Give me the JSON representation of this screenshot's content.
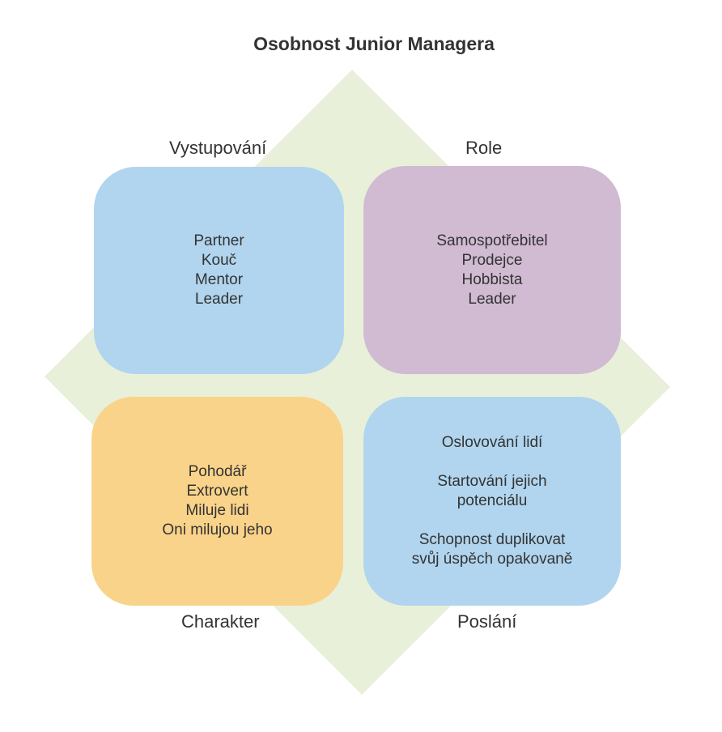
{
  "title": "Osobnost Junior Managera",
  "colors": {
    "diamond": "#e9f0da",
    "blue": "#b1d5ee",
    "purple": "#d0bbd3",
    "orange": "#fad38a",
    "text": "#333333"
  },
  "quadrants": {
    "top_left": {
      "label": "Vystupování",
      "items": [
        "Partner",
        "Kouč",
        "Mentor",
        "Leader"
      ]
    },
    "top_right": {
      "label": "Role",
      "items": [
        "Samospotřebitel",
        "Prodejce",
        "Hobbista",
        "Leader"
      ]
    },
    "bottom_left": {
      "label": "Charakter",
      "items": [
        "Pohodář",
        "Extrovert",
        "Miluje lidi",
        "Oni milujou jeho"
      ]
    },
    "bottom_right": {
      "label": "Poslání",
      "items": [
        "Oslovování lidí",
        "",
        "Startování jejich",
        "potenciálu",
        "",
        "Schopnost duplikovat",
        "svůj úspěch opakovaně"
      ]
    }
  }
}
